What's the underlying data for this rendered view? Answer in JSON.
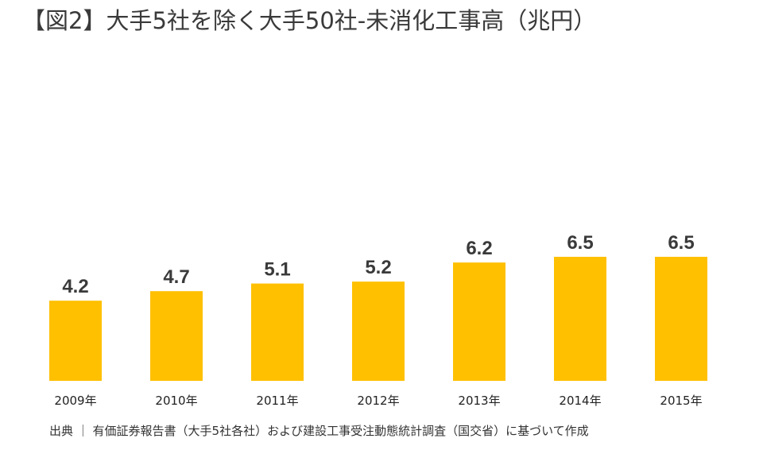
{
  "title": "【図2】大手5社を除く大手50社-未消化工事高（兆円）",
  "source": "出典 ｜ 有価証券報告書（大手5社各社）および建設工事受注動態統計調査（国交省）に基づいて作成",
  "colors": {
    "bar": "#FFC000",
    "text": "#333333"
  },
  "chart_data": {
    "type": "bar",
    "title": "【図2】大手5社を除く大手50社-未消化工事高（兆円）",
    "xlabel": "",
    "ylabel": "",
    "categories": [
      "2009年",
      "2010年",
      "2011年",
      "2012年",
      "2013年",
      "2014年",
      "2015年"
    ],
    "values": [
      4.2,
      4.7,
      5.1,
      5.2,
      6.2,
      6.5,
      6.5
    ],
    "value_labels": [
      "4.2",
      "4.7",
      "5.1",
      "5.2",
      "6.2",
      "6.5",
      "6.5"
    ],
    "ylim": [
      0,
      6.5
    ],
    "grid": false,
    "legend": "none"
  }
}
